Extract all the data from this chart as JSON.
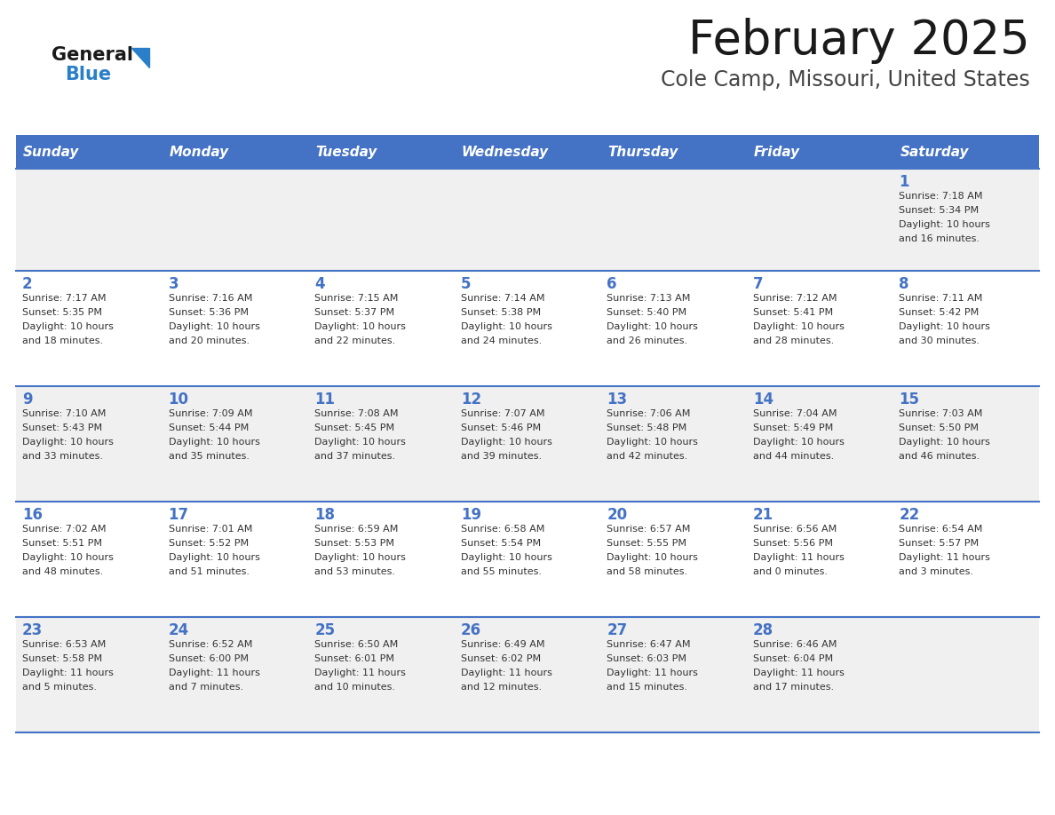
{
  "title": "February 2025",
  "subtitle": "Cole Camp, Missouri, United States",
  "header_bg": "#4472C4",
  "header_text_color": "#FFFFFF",
  "day_names": [
    "Sunday",
    "Monday",
    "Tuesday",
    "Wednesday",
    "Thursday",
    "Friday",
    "Saturday"
  ],
  "odd_row_bg": "#F0F0F0",
  "even_row_bg": "#FFFFFF",
  "line_color": "#4472C4",
  "title_color": "#1a1a1a",
  "subtitle_color": "#444444",
  "day_number_color": "#4472C4",
  "cell_text_color": "#333333",
  "logo_general_color": "#1a1a1a",
  "logo_blue_color": "#2a7fc9",
  "calendar_data": [
    [
      {
        "day": "",
        "sunrise": "",
        "sunset": "",
        "daylight": ""
      },
      {
        "day": "",
        "sunrise": "",
        "sunset": "",
        "daylight": ""
      },
      {
        "day": "",
        "sunrise": "",
        "sunset": "",
        "daylight": ""
      },
      {
        "day": "",
        "sunrise": "",
        "sunset": "",
        "daylight": ""
      },
      {
        "day": "",
        "sunrise": "",
        "sunset": "",
        "daylight": ""
      },
      {
        "day": "",
        "sunrise": "",
        "sunset": "",
        "daylight": ""
      },
      {
        "day": "1",
        "sunrise": "7:18 AM",
        "sunset": "5:34 PM",
        "daylight": "10 hours and 16 minutes."
      }
    ],
    [
      {
        "day": "2",
        "sunrise": "7:17 AM",
        "sunset": "5:35 PM",
        "daylight": "10 hours and 18 minutes."
      },
      {
        "day": "3",
        "sunrise": "7:16 AM",
        "sunset": "5:36 PM",
        "daylight": "10 hours and 20 minutes."
      },
      {
        "day": "4",
        "sunrise": "7:15 AM",
        "sunset": "5:37 PM",
        "daylight": "10 hours and 22 minutes."
      },
      {
        "day": "5",
        "sunrise": "7:14 AM",
        "sunset": "5:38 PM",
        "daylight": "10 hours and 24 minutes."
      },
      {
        "day": "6",
        "sunrise": "7:13 AM",
        "sunset": "5:40 PM",
        "daylight": "10 hours and 26 minutes."
      },
      {
        "day": "7",
        "sunrise": "7:12 AM",
        "sunset": "5:41 PM",
        "daylight": "10 hours and 28 minutes."
      },
      {
        "day": "8",
        "sunrise": "7:11 AM",
        "sunset": "5:42 PM",
        "daylight": "10 hours and 30 minutes."
      }
    ],
    [
      {
        "day": "9",
        "sunrise": "7:10 AM",
        "sunset": "5:43 PM",
        "daylight": "10 hours and 33 minutes."
      },
      {
        "day": "10",
        "sunrise": "7:09 AM",
        "sunset": "5:44 PM",
        "daylight": "10 hours and 35 minutes."
      },
      {
        "day": "11",
        "sunrise": "7:08 AM",
        "sunset": "5:45 PM",
        "daylight": "10 hours and 37 minutes."
      },
      {
        "day": "12",
        "sunrise": "7:07 AM",
        "sunset": "5:46 PM",
        "daylight": "10 hours and 39 minutes."
      },
      {
        "day": "13",
        "sunrise": "7:06 AM",
        "sunset": "5:48 PM",
        "daylight": "10 hours and 42 minutes."
      },
      {
        "day": "14",
        "sunrise": "7:04 AM",
        "sunset": "5:49 PM",
        "daylight": "10 hours and 44 minutes."
      },
      {
        "day": "15",
        "sunrise": "7:03 AM",
        "sunset": "5:50 PM",
        "daylight": "10 hours and 46 minutes."
      }
    ],
    [
      {
        "day": "16",
        "sunrise": "7:02 AM",
        "sunset": "5:51 PM",
        "daylight": "10 hours and 48 minutes."
      },
      {
        "day": "17",
        "sunrise": "7:01 AM",
        "sunset": "5:52 PM",
        "daylight": "10 hours and 51 minutes."
      },
      {
        "day": "18",
        "sunrise": "6:59 AM",
        "sunset": "5:53 PM",
        "daylight": "10 hours and 53 minutes."
      },
      {
        "day": "19",
        "sunrise": "6:58 AM",
        "sunset": "5:54 PM",
        "daylight": "10 hours and 55 minutes."
      },
      {
        "day": "20",
        "sunrise": "6:57 AM",
        "sunset": "5:55 PM",
        "daylight": "10 hours and 58 minutes."
      },
      {
        "day": "21",
        "sunrise": "6:56 AM",
        "sunset": "5:56 PM",
        "daylight": "11 hours and 0 minutes."
      },
      {
        "day": "22",
        "sunrise": "6:54 AM",
        "sunset": "5:57 PM",
        "daylight": "11 hours and 3 minutes."
      }
    ],
    [
      {
        "day": "23",
        "sunrise": "6:53 AM",
        "sunset": "5:58 PM",
        "daylight": "11 hours and 5 minutes."
      },
      {
        "day": "24",
        "sunrise": "6:52 AM",
        "sunset": "6:00 PM",
        "daylight": "11 hours and 7 minutes."
      },
      {
        "day": "25",
        "sunrise": "6:50 AM",
        "sunset": "6:01 PM",
        "daylight": "11 hours and 10 minutes."
      },
      {
        "day": "26",
        "sunrise": "6:49 AM",
        "sunset": "6:02 PM",
        "daylight": "11 hours and 12 minutes."
      },
      {
        "day": "27",
        "sunrise": "6:47 AM",
        "sunset": "6:03 PM",
        "daylight": "11 hours and 15 minutes."
      },
      {
        "day": "28",
        "sunrise": "6:46 AM",
        "sunset": "6:04 PM",
        "daylight": "11 hours and 17 minutes."
      },
      {
        "day": "",
        "sunrise": "",
        "sunset": "",
        "daylight": ""
      }
    ]
  ]
}
